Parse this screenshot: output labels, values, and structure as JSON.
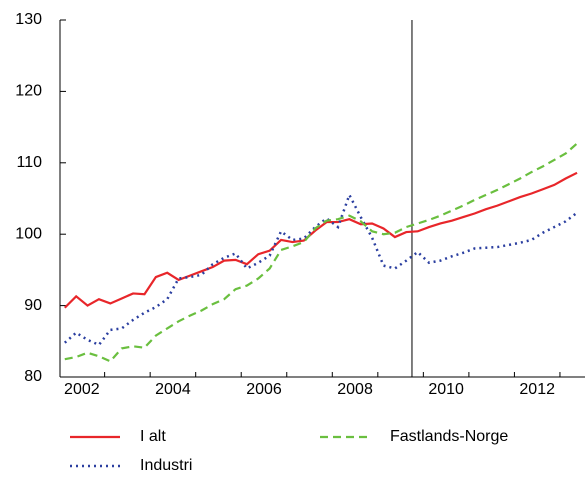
{
  "chart_data": {
    "type": "line",
    "x": [
      2002.125,
      2002.375,
      2002.625,
      2002.875,
      2003.125,
      2003.375,
      2003.625,
      2003.875,
      2004.125,
      2004.375,
      2004.625,
      2004.875,
      2005.125,
      2005.375,
      2005.625,
      2005.875,
      2006.125,
      2006.375,
      2006.625,
      2006.875,
      2007.125,
      2007.375,
      2007.625,
      2007.875,
      2008.125,
      2008.375,
      2008.625,
      2008.875,
      2009.125,
      2009.375,
      2009.625,
      2009.875,
      2010.125,
      2010.375,
      2010.625,
      2010.875,
      2011.125,
      2011.375,
      2011.625,
      2011.875,
      2012.125,
      2012.375,
      2012.625,
      2012.875,
      2013.125,
      2013.375
    ],
    "series": [
      {
        "name": "I alt",
        "color": "#e8262a",
        "dash": "solid",
        "values": [
          89.7,
          91.3,
          90.0,
          90.9,
          90.3,
          91.0,
          91.7,
          91.6,
          94.0,
          94.6,
          93.6,
          94.2,
          94.8,
          95.4,
          96.3,
          96.4,
          95.8,
          97.2,
          97.7,
          99.2,
          98.9,
          99.1,
          100.5,
          101.7,
          101.7,
          102.1,
          101.4,
          101.5,
          100.8,
          99.6,
          100.3,
          100.4,
          101.0,
          101.5,
          101.9,
          102.4,
          102.9,
          103.5,
          104.0,
          104.6,
          105.2,
          105.7,
          106.3,
          106.9,
          107.8,
          108.6
        ]
      },
      {
        "name": "Industri",
        "color": "#2b3fa0",
        "dash": "dotted",
        "values": [
          84.8,
          86.2,
          85.2,
          84.5,
          86.6,
          86.8,
          88.0,
          89.0,
          89.8,
          90.9,
          93.8,
          94.0,
          94.3,
          95.8,
          96.7,
          97.3,
          95.2,
          96.0,
          97.0,
          100.4,
          99.2,
          99.4,
          101.0,
          102.2,
          101.0,
          105.5,
          102.4,
          99.5,
          95.6,
          95.2,
          96.3,
          97.5,
          96.0,
          96.3,
          96.9,
          97.4,
          98.0,
          98.1,
          98.2,
          98.5,
          98.8,
          99.2,
          100.2,
          101.0,
          101.8,
          103.0
        ]
      },
      {
        "name": "Fastlands-Norge",
        "color": "#6abf3f",
        "dash": "dashed",
        "values": [
          82.5,
          82.8,
          83.4,
          82.9,
          82.2,
          84.0,
          84.3,
          84.1,
          85.8,
          86.8,
          87.8,
          88.6,
          89.3,
          90.2,
          90.9,
          92.3,
          92.8,
          93.8,
          95.2,
          97.8,
          98.3,
          98.9,
          100.8,
          101.9,
          102.1,
          102.6,
          101.8,
          100.4,
          100.0,
          100.2,
          101.0,
          101.5,
          102.0,
          102.6,
          103.3,
          104.0,
          104.8,
          105.5,
          106.2,
          107.0,
          107.8,
          108.7,
          109.5,
          110.4,
          111.3,
          112.7
        ]
      }
    ],
    "xlim": [
      2002.02,
      2013.55
    ],
    "xticks": [
      {
        "value": 2002.5,
        "label": "2002"
      },
      {
        "value": 2004.5,
        "label": "2004"
      },
      {
        "value": 2006.5,
        "label": "2006"
      },
      {
        "value": 2008.5,
        "label": "2008"
      },
      {
        "value": 2010.5,
        "label": "2010"
      },
      {
        "value": 2012.5,
        "label": "2012"
      }
    ],
    "ylim": [
      80,
      130
    ],
    "yticks": [
      80,
      90,
      100,
      110,
      120,
      130
    ],
    "vline": 2009.75,
    "legend": "bottom"
  }
}
